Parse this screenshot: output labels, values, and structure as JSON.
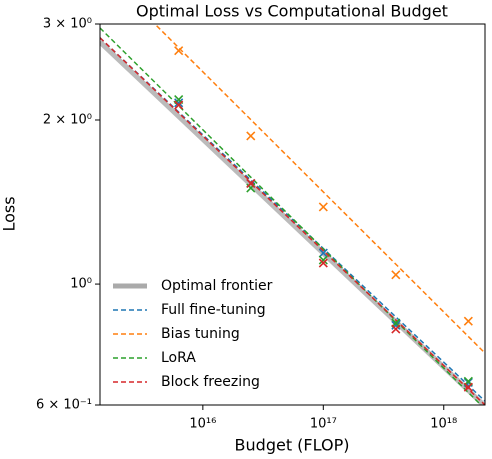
{
  "chart_data": {
    "type": "scatter",
    "title": "Optimal Loss vs Computational Budget",
    "x_label": "Budget (FLOP)",
    "y_label": "Loss",
    "x_scale": "log",
    "y_scale": "log",
    "legend": "lower left",
    "xlim": [
      1400000000000000.0,
      2.2e+18
    ],
    "ylim": [
      0.6,
      3.0
    ],
    "xticks": [
      {
        "value": 1e+16,
        "label": "10¹⁶"
      },
      {
        "value": 1e+17,
        "label": "10¹⁷"
      },
      {
        "value": 1e+18,
        "label": "10¹⁸"
      }
    ],
    "yticks": [
      {
        "value": 0.6,
        "label": "6 × 10⁻¹"
      },
      {
        "value": 1,
        "label": "10⁰"
      },
      {
        "value": 2,
        "label": "2 × 10⁰"
      },
      {
        "value": 3,
        "label": "3 × 10⁰"
      }
    ],
    "x": [
      6300000000000000.0,
      2.5e+16,
      1e+17,
      4e+17,
      1.6e+18
    ],
    "fit_x": [
      1400000000000000.0,
      2.2e+18
    ],
    "series": [
      {
        "name": "Optimal frontier",
        "color": "#aaaaaa",
        "fit": [
          2.78,
          0.597
        ]
      },
      {
        "name": "Full fine-tuning",
        "color": "#1f77b4",
        "values": [
          2.15,
          1.53,
          1.14,
          0.84,
          0.66
        ],
        "fit": [
          2.83,
          0.61
        ]
      },
      {
        "name": "Bias tuning",
        "color": "#ff7f0e",
        "values": [
          2.68,
          1.87,
          1.385,
          1.04,
          0.855
        ],
        "fit": [
          3.78,
          0.747
        ]
      },
      {
        "name": "LoRA",
        "color": "#2ca02c",
        "values": [
          2.18,
          1.5,
          1.107,
          0.848,
          0.663
        ],
        "fit": [
          2.95,
          0.59
        ]
      },
      {
        "name": "Block freezing",
        "color": "#d62728",
        "values": [
          2.13,
          1.53,
          1.093,
          0.827,
          0.647
        ],
        "fit": [
          2.83,
          0.6
        ]
      }
    ]
  }
}
